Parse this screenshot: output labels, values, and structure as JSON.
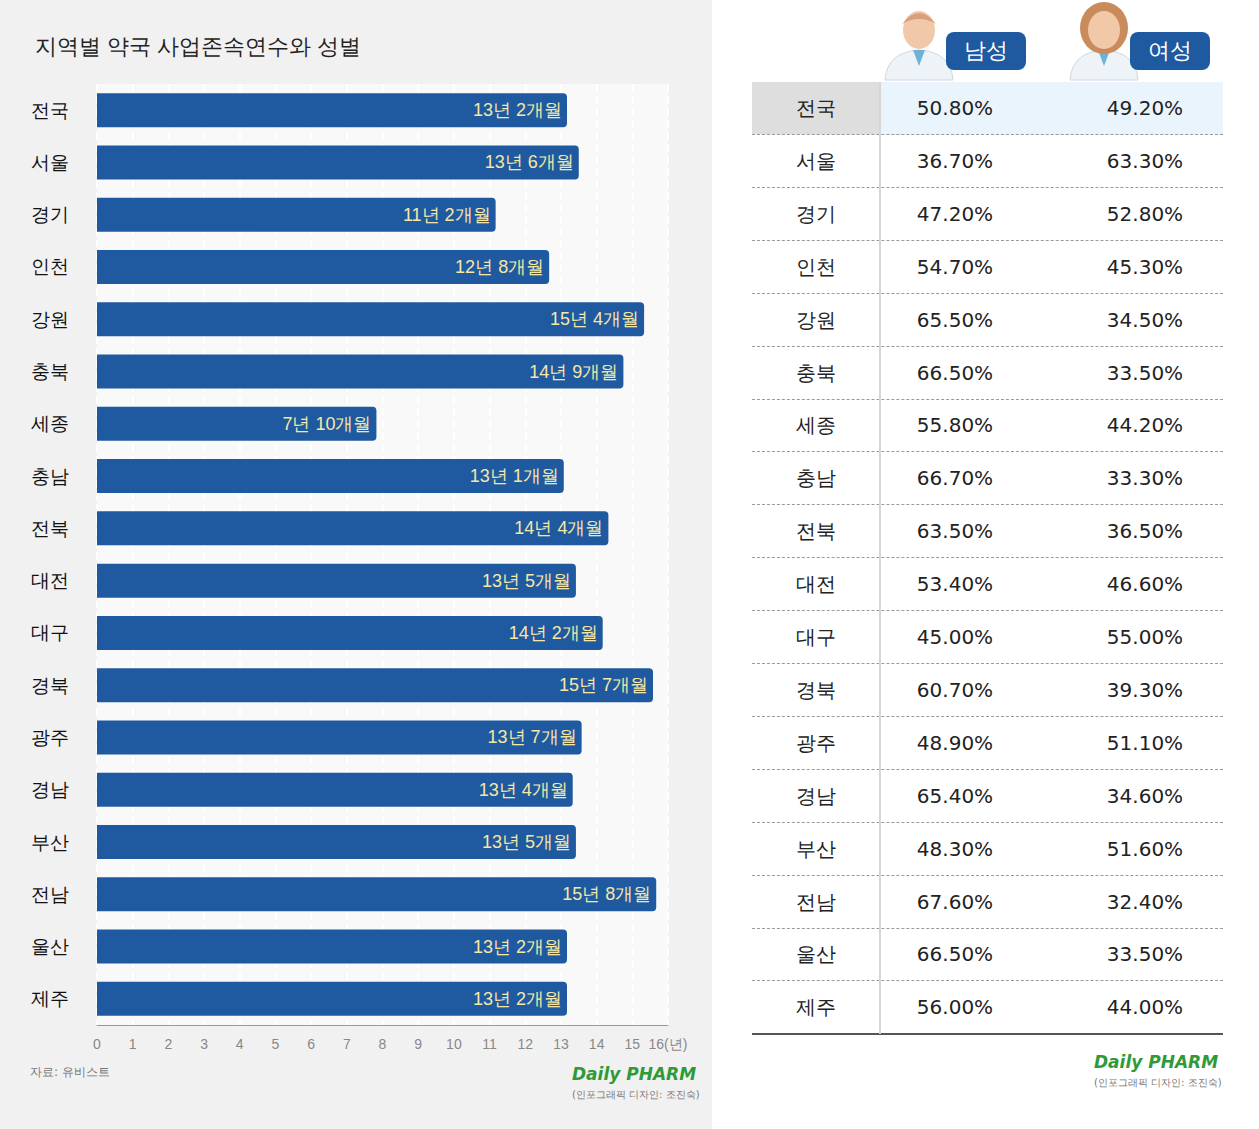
{
  "chart_data": {
    "type": "bar",
    "title": "지역별 약국 사업존속연수와 성별",
    "orientation": "horizontal",
    "categories": [
      "전국",
      "서울",
      "경기",
      "인천",
      "강원",
      "충북",
      "세종",
      "충남",
      "전북",
      "대전",
      "대구",
      "경북",
      "광주",
      "경남",
      "부산",
      "전남",
      "울산",
      "제주"
    ],
    "values": [
      13.17,
      13.5,
      11.17,
      12.67,
      15.33,
      14.75,
      7.83,
      13.08,
      14.33,
      13.42,
      14.17,
      15.58,
      13.58,
      13.33,
      13.42,
      15.67,
      13.17,
      13.17
    ],
    "value_labels": [
      "13년 2개월",
      "13년 6개월",
      "11년 2개월",
      "12년 8개월",
      "15년 4개월",
      "14년 9개월",
      "7년 10개월",
      "13년 1개월",
      "14년 4개월",
      "13년 5개월",
      "14년 2개월",
      "15년 7개월",
      "13년 7개월",
      "13년 4개월",
      "13년 5개월",
      "15년 8개월",
      "13년 2개월",
      "13년 2개월"
    ],
    "color": "#1f5aa0",
    "data_labels": true,
    "grid": true,
    "xlim": [
      0,
      16
    ],
    "xticks": [
      0,
      1,
      2,
      3,
      4,
      5,
      6,
      7,
      8,
      9,
      10,
      11,
      12,
      13,
      14,
      15,
      {
        "value": 16,
        "label": "16(년)"
      }
    ]
  },
  "table": {
    "columns": [
      "남성",
      "여성"
    ],
    "rows": [
      {
        "label": "전국",
        "values": [
          "50.80%",
          "49.20%"
        ]
      },
      {
        "label": "서울",
        "values": [
          "36.70%",
          "63.30%"
        ]
      },
      {
        "label": "경기",
        "values": [
          "47.20%",
          "52.80%"
        ]
      },
      {
        "label": "인천",
        "values": [
          "54.70%",
          "45.30%"
        ]
      },
      {
        "label": "강원",
        "values": [
          "65.50%",
          "34.50%"
        ]
      },
      {
        "label": "충북",
        "values": [
          "66.50%",
          "33.50%"
        ]
      },
      {
        "label": "세종",
        "values": [
          "55.80%",
          "44.20%"
        ]
      },
      {
        "label": "충남",
        "values": [
          "66.70%",
          "33.30%"
        ]
      },
      {
        "label": "전북",
        "values": [
          "63.50%",
          "36.50%"
        ]
      },
      {
        "label": "대전",
        "values": [
          "53.40%",
          "46.60%"
        ]
      },
      {
        "label": "대구",
        "values": [
          "45.00%",
          "55.00%"
        ]
      },
      {
        "label": "경북",
        "values": [
          "60.70%",
          "39.30%"
        ]
      },
      {
        "label": "광주",
        "values": [
          "48.90%",
          "51.10%"
        ]
      },
      {
        "label": "경남",
        "values": [
          "65.40%",
          "34.60%"
        ]
      },
      {
        "label": "부산",
        "values": [
          "48.30%",
          "51.60%"
        ]
      },
      {
        "label": "전남",
        "values": [
          "67.60%",
          "32.40%"
        ]
      },
      {
        "label": "울산",
        "values": [
          "66.50%",
          "33.50%"
        ]
      },
      {
        "label": "제주",
        "values": [
          "56.00%",
          "44.00%"
        ]
      }
    ]
  },
  "source": "자료: 유비스트",
  "brand": "Daily PHARM",
  "credit": "(인포그래픽 디자인: 조진숙)"
}
